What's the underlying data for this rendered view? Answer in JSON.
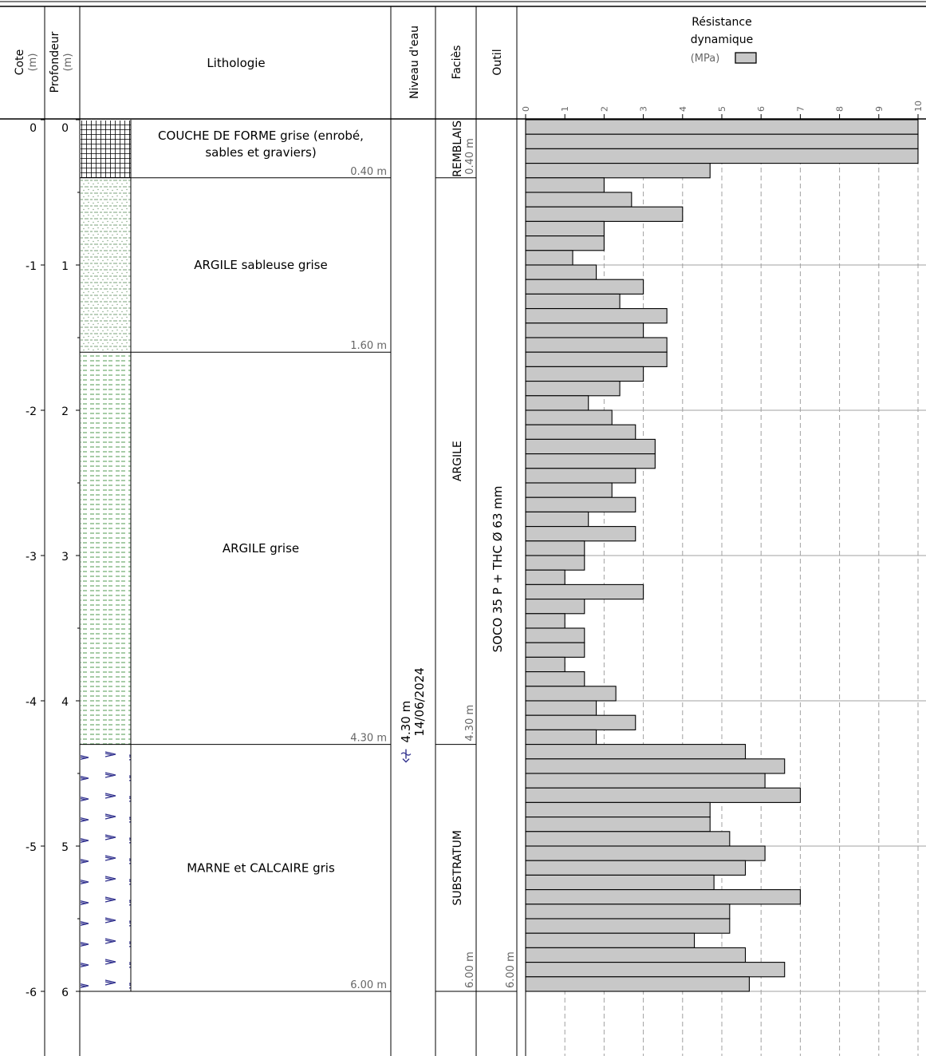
{
  "headers": {
    "cote": "Cote",
    "cote_unit": "(m)",
    "profondeur": "Profondeur",
    "profondeur_unit": "(m)",
    "lithologie": "Lithologie",
    "niveau_eau": "Niveau d'eau",
    "facies": "Faciès",
    "outil": "Outil",
    "resistance_line1": "Résistance",
    "resistance_line2": "dynamique",
    "resistance_unit": "(MPa)"
  },
  "depth_labels": [
    {
      "depth": 0,
      "cote": "0",
      "prof": "0"
    },
    {
      "depth": 1,
      "cote": "-1",
      "prof": "1"
    },
    {
      "depth": 2,
      "cote": "-2",
      "prof": "2"
    },
    {
      "depth": 3,
      "cote": "-3",
      "prof": "3"
    },
    {
      "depth": 4,
      "cote": "-4",
      "prof": "4"
    },
    {
      "depth": 5,
      "cote": "-5",
      "prof": "5"
    },
    {
      "depth": 6,
      "cote": "-6",
      "prof": "6"
    }
  ],
  "layers": [
    {
      "top": 0.0,
      "bottom": 0.4,
      "pattern": "grid",
      "lines": [
        "COUCHE DE FORME grise (enrobé,",
        "sables et graviers)"
      ],
      "base_label": "0.40 m"
    },
    {
      "top": 0.4,
      "bottom": 1.6,
      "pattern": "sandyclay",
      "lines": [
        "ARGILE sableuse grise"
      ],
      "base_label": "1.60 m"
    },
    {
      "top": 1.6,
      "bottom": 4.3,
      "pattern": "clay",
      "lines": [
        "ARGILE grise"
      ],
      "base_label": "4.30 m"
    },
    {
      "top": 4.3,
      "bottom": 6.0,
      "pattern": "marl",
      "lines": [
        "MARNE et CALCAIRE gris"
      ],
      "base_label": "6.00 m"
    }
  ],
  "water": {
    "depth": 4.3,
    "label": "4.30 m",
    "date": "14/06/2024"
  },
  "facies": [
    {
      "top": 0.0,
      "bottom": 0.4,
      "name": "REMBLAIS",
      "base_label": "0.40 m"
    },
    {
      "top": 0.4,
      "bottom": 4.3,
      "name": "ARGILE",
      "base_label": "4.30 m"
    },
    {
      "top": 4.3,
      "bottom": 6.0,
      "name": "SUBSTRATUM",
      "base_label": "6.00 m"
    }
  ],
  "tool": {
    "top": 0.0,
    "bottom": 6.0,
    "name": "SOCO 35 P + THC Ø 63 mm",
    "base_label": "6.00 m"
  },
  "chart_data": {
    "type": "bar",
    "orientation": "horizontal",
    "title": "Résistance dynamique",
    "xlabel": "(MPa)",
    "xlim": [
      0,
      10
    ],
    "x_ticks": [
      "0",
      "1",
      "2",
      "3",
      "4",
      "5",
      "6",
      "7",
      "8",
      "9",
      "10"
    ],
    "depth_step_m": 0.1,
    "grid": true,
    "values": [
      10,
      10,
      10,
      4.7,
      2.0,
      2.7,
      4.0,
      2.0,
      2.0,
      1.2,
      1.8,
      3.0,
      2.4,
      3.6,
      3.0,
      3.6,
      3.6,
      3.0,
      2.4,
      1.6,
      2.2,
      2.8,
      3.3,
      3.3,
      2.8,
      2.2,
      2.8,
      1.6,
      2.8,
      1.5,
      1.5,
      1.0,
      3.0,
      1.5,
      1.0,
      1.5,
      1.5,
      1.0,
      1.5,
      2.3,
      1.8,
      2.8,
      1.8,
      5.6,
      6.6,
      6.1,
      7.0,
      4.7,
      4.7,
      5.2,
      6.1,
      5.6,
      4.8,
      7.0,
      5.2,
      5.2,
      4.3,
      5.6,
      6.6,
      5.7
    ]
  },
  "colors": {
    "line": "#000000",
    "bar_fill": "#c8c8c8",
    "grid": "#a0a0a0",
    "clay_dash": "#4f9a4f",
    "sandy_dot": "#7aa07a",
    "marl": "#33338f",
    "label_grey": "#666666",
    "water": "#33338f"
  },
  "icons": {
    "water_level": "water-level-icon",
    "legend_swatch": "legend-swatch-icon"
  }
}
